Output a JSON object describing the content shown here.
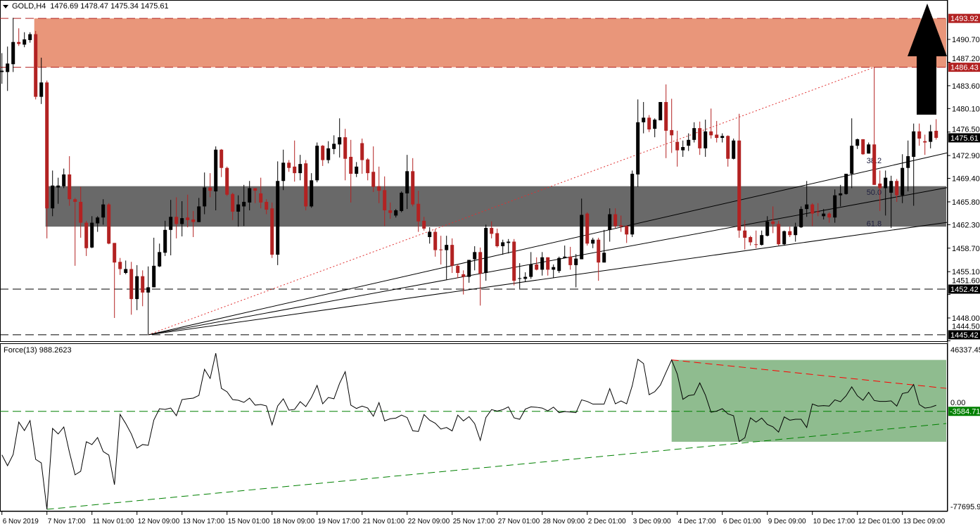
{
  "header": {
    "symbol": "GOLD,H4",
    "open": "1476.69",
    "high": "1478.47",
    "low": "1475.34",
    "close": "1475.61"
  },
  "indicator": {
    "name": "Force(13)",
    "value": "988.2623"
  },
  "colors": {
    "bull": "#000000",
    "bear": "#b22222",
    "supply_zone": "#e9967a",
    "demand_zone": "#696969",
    "force_box": "#8fbc8f",
    "support": "#008000",
    "resistance": "#ff0000",
    "fib_line": "#000000",
    "fib_dotted": "#e03030"
  },
  "chart_data": {
    "type": "candlestick",
    "title": "GOLD,H4",
    "price_axis_ticks": [
      "1490.70",
      "1487.20",
      "1483.60",
      "1480.10",
      "1476.50",
      "1472.90",
      "1469.40",
      "1465.80",
      "1462.30",
      "1458.70",
      "1455.10",
      "1451.60",
      "1448.00",
      "1444.50"
    ],
    "price_markers": [
      {
        "label": "1493.92",
        "price": 1493.92,
        "color": "#b22222"
      },
      {
        "label": "1486.43",
        "price": 1486.43,
        "color": "#b22222"
      },
      {
        "label": "1475.61",
        "price": 1475.61,
        "color": "#000000"
      },
      {
        "label": "1452.42",
        "price": 1452.42,
        "color": "#000000"
      },
      {
        "label": "1445.42",
        "price": 1445.42,
        "color": "#000000"
      }
    ],
    "time_labels": [
      "6 Nov 2019",
      "7 Nov 17:00",
      "11 Nov 01:00",
      "12 Nov 09:00",
      "13 Nov 17:00",
      "15 Nov 01:00",
      "18 Nov 09:00",
      "19 Nov 17:00",
      "21 Nov 01:00",
      "22 Nov 09:00",
      "25 Nov 17:00",
      "27 Nov 01:00",
      "28 Nov 09:00",
      "2 Dec 01:00",
      "3 Dec 09:00",
      "4 Dec 17:00",
      "6 Dec 01:00",
      "9 Dec 09:00",
      "10 Dec 17:00",
      "12 Dec 01:00",
      "13 Dec 09:00"
    ],
    "time_label_every_n_bars": 8,
    "zones": [
      {
        "name": "supply-zone",
        "from_bar": 6,
        "top": 1493.92,
        "bottom": 1486.43
      },
      {
        "name": "demand-zone",
        "from_bar": 8,
        "top": 1468.2,
        "bottom": 1462.0
      }
    ],
    "horizontal_lines": [
      1493.92,
      1486.43,
      1452.42,
      1445.42
    ],
    "fib_fan": {
      "from_bar": 26,
      "from_price": 1445.42,
      "to_bar": 155,
      "to_price": 1486.43,
      "levels": [
        "38.2",
        "50.0",
        "61.8"
      ]
    },
    "candles_ohlc": [
      [
        1485.7,
        1488.6,
        1483.9,
        1485.9
      ],
      [
        1485.7,
        1489.6,
        1482.8,
        1487.0
      ],
      [
        1486.9,
        1494.0,
        1485.7,
        1490.3
      ],
      [
        1490.3,
        1492.4,
        1489.7,
        1490.0
      ],
      [
        1489.9,
        1491.8,
        1489.5,
        1490.7
      ],
      [
        1490.6,
        1491.8,
        1490.2,
        1491.5
      ],
      [
        1491.5,
        1492.0,
        1481.5,
        1481.9
      ],
      [
        1481.9,
        1487.9,
        1480.8,
        1484.1
      ],
      [
        1484.1,
        1484.4,
        1460.2,
        1464.8
      ],
      [
        1464.8,
        1470.6,
        1463.6,
        1468.3
      ],
      [
        1468.0,
        1469.5,
        1465.5,
        1468.3
      ],
      [
        1468.2,
        1470.9,
        1467.9,
        1470.0
      ],
      [
        1470.0,
        1472.8,
        1465.2,
        1466.2
      ],
      [
        1466.2,
        1466.4,
        1456.0,
        1465.8
      ],
      [
        1465.8,
        1468.1,
        1460.3,
        1462.6
      ],
      [
        1462.6,
        1462.9,
        1457.5,
        1458.7
      ],
      [
        1458.8,
        1463.6,
        1458.7,
        1462.6
      ],
      [
        1462.5,
        1463.6,
        1461.2,
        1463.4
      ],
      [
        1463.4,
        1466.2,
        1462.3,
        1465.4
      ],
      [
        1465.4,
        1465.6,
        1459.3,
        1459.4
      ],
      [
        1459.5,
        1459.5,
        1448.0,
        1456.5
      ],
      [
        1456.6,
        1457.2,
        1454.6,
        1455.5
      ],
      [
        1454.9,
        1456.8,
        1454.7,
        1455.5
      ],
      [
        1455.5,
        1456.6,
        1448.5,
        1450.9
      ],
      [
        1450.9,
        1456.1,
        1449.2,
        1454.4
      ],
      [
        1454.4,
        1455.3,
        1449.8,
        1451.9
      ],
      [
        1451.9,
        1455.9,
        1445.5,
        1452.7
      ],
      [
        1452.7,
        1460.3,
        1452.7,
        1456.0
      ],
      [
        1455.9,
        1459.4,
        1455.8,
        1458.1
      ],
      [
        1458.0,
        1462.9,
        1457.5,
        1461.5
      ],
      [
        1461.5,
        1466.1,
        1457.6,
        1463.5
      ],
      [
        1463.5,
        1466.5,
        1460.2,
        1462.4
      ],
      [
        1462.4,
        1465.9,
        1460.5,
        1463.3
      ],
      [
        1463.4,
        1466.9,
        1461.9,
        1463.0
      ],
      [
        1463.1,
        1464.4,
        1460.4,
        1462.7
      ],
      [
        1462.7,
        1466.4,
        1462.7,
        1465.1
      ],
      [
        1465.1,
        1470.3,
        1463.9,
        1468.0
      ],
      [
        1468.0,
        1470.2,
        1466.5,
        1467.5
      ],
      [
        1467.4,
        1474.3,
        1464.5,
        1473.8
      ],
      [
        1473.8,
        1473.9,
        1469.6,
        1471.0
      ],
      [
        1471.0,
        1471.2,
        1466.7,
        1466.9
      ],
      [
        1467.0,
        1467.2,
        1463.0,
        1464.3
      ],
      [
        1464.3,
        1466.8,
        1462.0,
        1465.4
      ],
      [
        1465.1,
        1468.4,
        1462.1,
        1465.8
      ],
      [
        1465.7,
        1469.0,
        1464.5,
        1467.9
      ],
      [
        1467.9,
        1467.9,
        1465.6,
        1467.5
      ],
      [
        1467.1,
        1469.5,
        1464.8,
        1465.7
      ],
      [
        1465.8,
        1466.2,
        1463.9,
        1464.6
      ],
      [
        1464.8,
        1465.7,
        1457.2,
        1457.7
      ],
      [
        1457.7,
        1472.0,
        1456.1,
        1469.0
      ],
      [
        1469.0,
        1473.8,
        1467.6,
        1471.8
      ],
      [
        1471.8,
        1472.2,
        1470.4,
        1471.0
      ],
      [
        1471.2,
        1475.2,
        1468.9,
        1470.2
      ],
      [
        1470.2,
        1473.0,
        1469.1,
        1471.6
      ],
      [
        1471.7,
        1472.2,
        1464.5,
        1465.1
      ],
      [
        1465.1,
        1470.2,
        1464.9,
        1469.1
      ],
      [
        1469.1,
        1474.9,
        1468.8,
        1474.4
      ],
      [
        1474.4,
        1474.5,
        1471.3,
        1472.2
      ],
      [
        1472.2,
        1475.1,
        1471.7,
        1474.0
      ],
      [
        1473.9,
        1476.0,
        1473.1,
        1474.7
      ],
      [
        1474.6,
        1478.6,
        1472.6,
        1475.7
      ],
      [
        1475.7,
        1477.0,
        1469.1,
        1472.4
      ],
      [
        1472.7,
        1475.3,
        1465.7,
        1470.1
      ],
      [
        1470.1,
        1471.9,
        1469.6,
        1471.2
      ],
      [
        1474.8,
        1475.5,
        1470.1,
        1472.2
      ],
      [
        1472.3,
        1472.5,
        1469.1,
        1470.2
      ],
      [
        1470.4,
        1474.3,
        1467.3,
        1468.1
      ],
      [
        1468.2,
        1471.2,
        1465.6,
        1467.5
      ],
      [
        1467.6,
        1469.7,
        1462.1,
        1464.5
      ],
      [
        1464.5,
        1465.7,
        1463.2,
        1464.1
      ],
      [
        1463.7,
        1464.7,
        1463.4,
        1464.5
      ],
      [
        1464.4,
        1467.4,
        1464.2,
        1467.2
      ],
      [
        1467.1,
        1473.0,
        1464.7,
        1470.5
      ],
      [
        1470.5,
        1472.5,
        1465.1,
        1465.4
      ],
      [
        1465.5,
        1467.5,
        1461.2,
        1462.8
      ],
      [
        1462.9,
        1463.5,
        1461.4,
        1461.7
      ],
      [
        1460.4,
        1461.9,
        1459.4,
        1461.2
      ],
      [
        1461.2,
        1461.6,
        1457.4,
        1458.4
      ],
      [
        1458.5,
        1460.6,
        1456.2,
        1458.4
      ],
      [
        1458.4,
        1460.6,
        1453.9,
        1459.2
      ],
      [
        1459.2,
        1460.2,
        1454.9,
        1456.0
      ],
      [
        1456.0,
        1456.3,
        1454.1,
        1454.9
      ],
      [
        1454.7,
        1455.3,
        1451.6,
        1454.3
      ],
      [
        1454.3,
        1456.9,
        1453.4,
        1456.9
      ],
      [
        1457.0,
        1459.0,
        1455.3,
        1458.1
      ],
      [
        1458.1,
        1458.8,
        1449.9,
        1454.8
      ],
      [
        1454.9,
        1462.3,
        1453.7,
        1461.8
      ],
      [
        1461.8,
        1462.8,
        1460.2,
        1460.9
      ],
      [
        1461.0,
        1461.7,
        1458.8,
        1459.0
      ],
      [
        1459.0,
        1460.0,
        1457.7,
        1459.6
      ],
      [
        1459.5,
        1460.1,
        1457.9,
        1459.7
      ],
      [
        1459.7,
        1460.1,
        1453.0,
        1453.7
      ],
      [
        1454.0,
        1456.4,
        1452.5,
        1454.1
      ],
      [
        1454.0,
        1455.0,
        1453.5,
        1454.3
      ],
      [
        1454.3,
        1458.1,
        1454.0,
        1456.2
      ],
      [
        1456.2,
        1457.3,
        1455.3,
        1455.4
      ],
      [
        1455.4,
        1458.1,
        1454.5,
        1457.3
      ],
      [
        1457.3,
        1457.3,
        1454.5,
        1455.4
      ],
      [
        1455.4,
        1456.2,
        1454.1,
        1455.8
      ],
      [
        1455.2,
        1457.4,
        1454.9,
        1457.2
      ],
      [
        1457.2,
        1459.1,
        1457.2,
        1457.4
      ],
      [
        1457.4,
        1458.9,
        1455.4,
        1456.1
      ],
      [
        1456.1,
        1457.8,
        1452.7,
        1457.1
      ],
      [
        1457.0,
        1466.3,
        1457.0,
        1463.8
      ],
      [
        1464.0,
        1464.2,
        1459.1,
        1459.4
      ],
      [
        1459.4,
        1460.3,
        1458.7,
        1460.0
      ],
      [
        1460.0,
        1460.3,
        1453.7,
        1456.5
      ],
      [
        1456.5,
        1461.5,
        1456.5,
        1458.0
      ],
      [
        1461.5,
        1464.8,
        1459.7,
        1463.9
      ],
      [
        1463.9,
        1464.8,
        1461.8,
        1462.1
      ],
      [
        1462.2,
        1463.7,
        1461.2,
        1462.0
      ],
      [
        1462.1,
        1462.2,
        1459.5,
        1460.8
      ],
      [
        1460.8,
        1470.6,
        1460.4,
        1470.1
      ],
      [
        1470.0,
        1481.5,
        1468.1,
        1478.0
      ],
      [
        1478.0,
        1481.1,
        1476.3,
        1478.7
      ],
      [
        1478.7,
        1479.1,
        1476.5,
        1476.9
      ],
      [
        1477.0,
        1478.6,
        1475.7,
        1478.4
      ],
      [
        1478.3,
        1481.1,
        1478.3,
        1481.1
      ],
      [
        1481.1,
        1483.8,
        1472.5,
        1476.7
      ],
      [
        1476.8,
        1481.6,
        1473.3,
        1476.0
      ],
      [
        1475.0,
        1476.7,
        1471.2,
        1473.7
      ],
      [
        1473.7,
        1475.2,
        1472.7,
        1474.2
      ],
      [
        1474.4,
        1476.3,
        1473.6,
        1475.3
      ],
      [
        1475.3,
        1478.0,
        1474.9,
        1477.1
      ],
      [
        1477.1,
        1478.1,
        1473.0,
        1474.0
      ],
      [
        1474.0,
        1478.4,
        1472.7,
        1476.6
      ],
      [
        1476.6,
        1480.1,
        1475.5,
        1476.0
      ],
      [
        1476.1,
        1478.2,
        1474.9,
        1475.6
      ],
      [
        1475.6,
        1476.3,
        1474.9,
        1475.9
      ],
      [
        1475.9,
        1476.0,
        1471.2,
        1472.4
      ],
      [
        1472.4,
        1475.5,
        1472.3,
        1475.2
      ],
      [
        1475.2,
        1479.3,
        1460.3,
        1461.4
      ],
      [
        1461.4,
        1463.0,
        1458.5,
        1460.3
      ],
      [
        1460.4,
        1460.6,
        1459.1,
        1459.6
      ],
      [
        1459.3,
        1461.4,
        1458.7,
        1459.2
      ],
      [
        1459.2,
        1461.4,
        1459.1,
        1460.7
      ],
      [
        1460.6,
        1463.6,
        1460.5,
        1462.8
      ],
      [
        1462.8,
        1465.1,
        1461.0,
        1462.4
      ],
      [
        1462.4,
        1462.9,
        1459.1,
        1459.3
      ],
      [
        1459.3,
        1461.4,
        1459.1,
        1461.3
      ],
      [
        1461.3,
        1462.0,
        1460.4,
        1460.7
      ],
      [
        1460.7,
        1462.6,
        1459.7,
        1462.0
      ],
      [
        1461.9,
        1465.1,
        1461.8,
        1464.7
      ],
      [
        1464.7,
        1469.0,
        1463.5,
        1465.4
      ],
      [
        1465.4,
        1465.6,
        1462.1,
        1464.0
      ],
      [
        1464.3,
        1465.6,
        1463.6,
        1464.2
      ],
      [
        1463.6,
        1464.7,
        1463.1,
        1464.0
      ],
      [
        1464.0,
        1464.2,
        1462.6,
        1463.4
      ],
      [
        1463.4,
        1467.7,
        1462.6,
        1466.8
      ],
      [
        1466.8,
        1468.4,
        1465.1,
        1467.1
      ],
      [
        1467.0,
        1470.1,
        1466.9,
        1470.1
      ],
      [
        1470.1,
        1478.6,
        1467.9,
        1474.4
      ],
      [
        1474.4,
        1475.5,
        1473.9,
        1475.4
      ],
      [
        1475.4,
        1475.4,
        1473.0,
        1473.1
      ],
      [
        1473.2,
        1474.9,
        1473.2,
        1474.6
      ],
      [
        1474.6,
        1486.4,
        1468.4,
        1468.4
      ],
      [
        1468.6,
        1470.6,
        1464.4,
        1467.9
      ],
      [
        1467.9,
        1470.6,
        1463.7,
        1469.5
      ],
      [
        1467.2,
        1469.8,
        1461.8,
        1469.0
      ],
      [
        1469.0,
        1469.3,
        1465.8,
        1466.8
      ],
      [
        1466.8,
        1473.1,
        1465.6,
        1471.0
      ],
      [
        1471.0,
        1475.2,
        1467.4,
        1472.8
      ],
      [
        1472.7,
        1477.8,
        1465.2,
        1476.6
      ],
      [
        1476.6,
        1477.8,
        1474.4,
        1475.5
      ],
      [
        1475.1,
        1476.1,
        1473.0,
        1474.9
      ],
      [
        1475.0,
        1477.6,
        1474.0,
        1476.6
      ],
      [
        1476.69,
        1478.47,
        1475.34,
        1475.61
      ]
    ],
    "force": {
      "name": "Force(13)",
      "axis_labels": [
        {
          "label": "46337.451",
          "value": 46337.451
        },
        {
          "label": "0.00",
          "value": 0
        },
        {
          "label": "-77695.96",
          "value": -77695.96
        }
      ],
      "marker": {
        "label": "-3584.710",
        "value": -3584.71,
        "color": "#008000"
      },
      "values": [
        -36500,
        -44700,
        -36200,
        -11700,
        -18100,
        -10600,
        -39900,
        -42600,
        -77695,
        -16500,
        -20700,
        -15400,
        -34600,
        -51600,
        -48900,
        -26600,
        -28700,
        -23400,
        -34000,
        -36700,
        -59100,
        -5900,
        -12800,
        -20700,
        -31400,
        -28700,
        -29300,
        -10100,
        -1600,
        -2100,
        -1100,
        -6900,
        5300,
        5900,
        6400,
        8500,
        28200,
        21300,
        40400,
        13800,
        11200,
        5300,
        4800,
        3200,
        6400,
        1100,
        1600,
        500,
        -13800,
        500,
        5900,
        -2700,
        -2100,
        3700,
        0,
        6900,
        16000,
        2100,
        6900,
        5900,
        17600,
        26400,
        1100,
        -1400,
        400,
        -1100,
        -7300,
        3000,
        -10800,
        -9200,
        -8700,
        -6400,
        -8300,
        -18300,
        -18800,
        -6000,
        -10300,
        -12600,
        -17000,
        -15800,
        -18400,
        -6400,
        -10800,
        -7600,
        -12900,
        -25500,
        -8200,
        -2300,
        -3400,
        -2300,
        -200,
        -8500,
        -9600,
        -1900,
        -200,
        -500,
        -1100,
        -3200,
        -400,
        -4600,
        -3700,
        -4100,
        -4600,
        5100,
        3900,
        1900,
        1900,
        1900,
        13600,
        2100,
        4300,
        2100,
        15800,
        35800,
        32600,
        9000,
        11300,
        16300,
        25900,
        35300,
        24600,
        5500,
        8300,
        9000,
        17900,
        8700,
        -4300,
        -3400,
        -1600,
        -5500,
        -6900,
        -26400,
        -23600,
        -8500,
        -11700,
        -8700,
        -13500,
        -15300,
        -19300,
        -7800,
        -10300,
        -9600,
        -9600,
        -15800,
        2000,
        400,
        700,
        400,
        5100,
        3700,
        8200,
        14900,
        8200,
        4800,
        10800,
        4600,
        3900,
        3900,
        4300,
        400,
        9900,
        10800,
        16700,
        1600,
        -1100,
        -500,
        988
      ],
      "support_line": {
        "from_bar": 8,
        "from_value": -77695,
        "to_bar": 167.8,
        "to_value": -12800
      },
      "resistance_line": {
        "from_bar": 119,
        "from_value": 35300,
        "to_bar": 167.8,
        "to_value": 13800
      },
      "range_box": {
        "from_bar": 119,
        "top": 35300,
        "bottom": -26600
      }
    }
  }
}
